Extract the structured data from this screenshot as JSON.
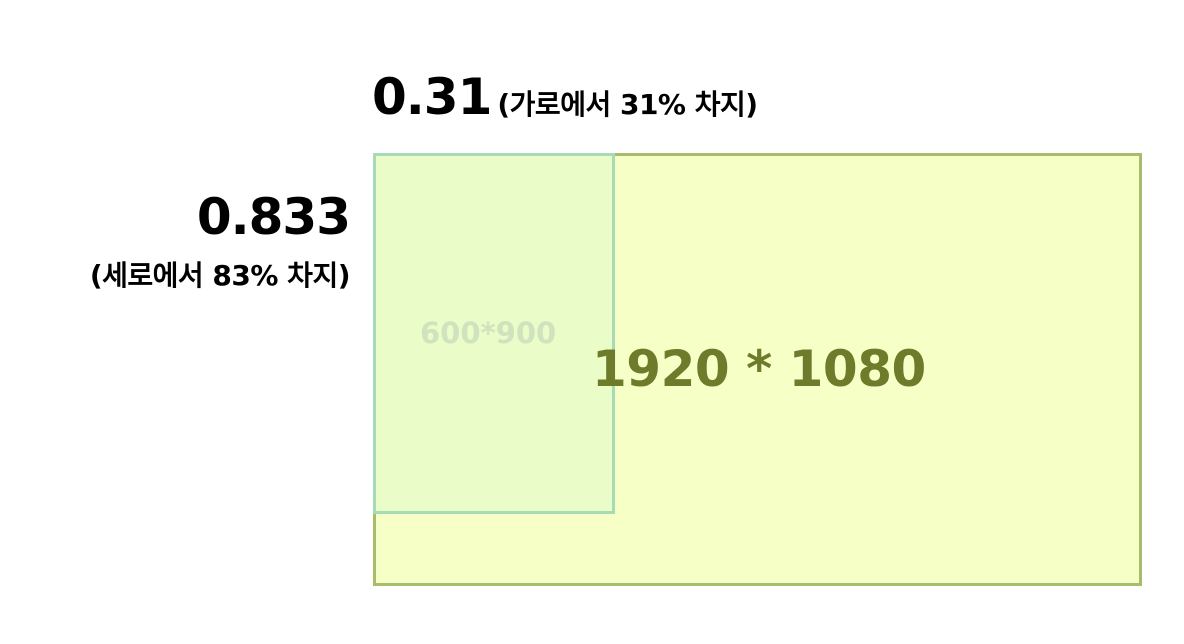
{
  "width_ratio": {
    "value": "0.31",
    "note": "(가로에서 31% 차지)"
  },
  "height_ratio": {
    "value": "0.833",
    "note": "(세로에서 83% 차지)"
  },
  "outer_box": {
    "label": "1920 * 1080",
    "fill_color": "#f6ffc6",
    "border_color": "#a8bd6b",
    "text_color": "#6e7b2a"
  },
  "inner_box": {
    "label": "600*900",
    "fill_color": "#eafcc8",
    "border_color": "#a7dbb8",
    "text_color": "#cfe3be"
  }
}
